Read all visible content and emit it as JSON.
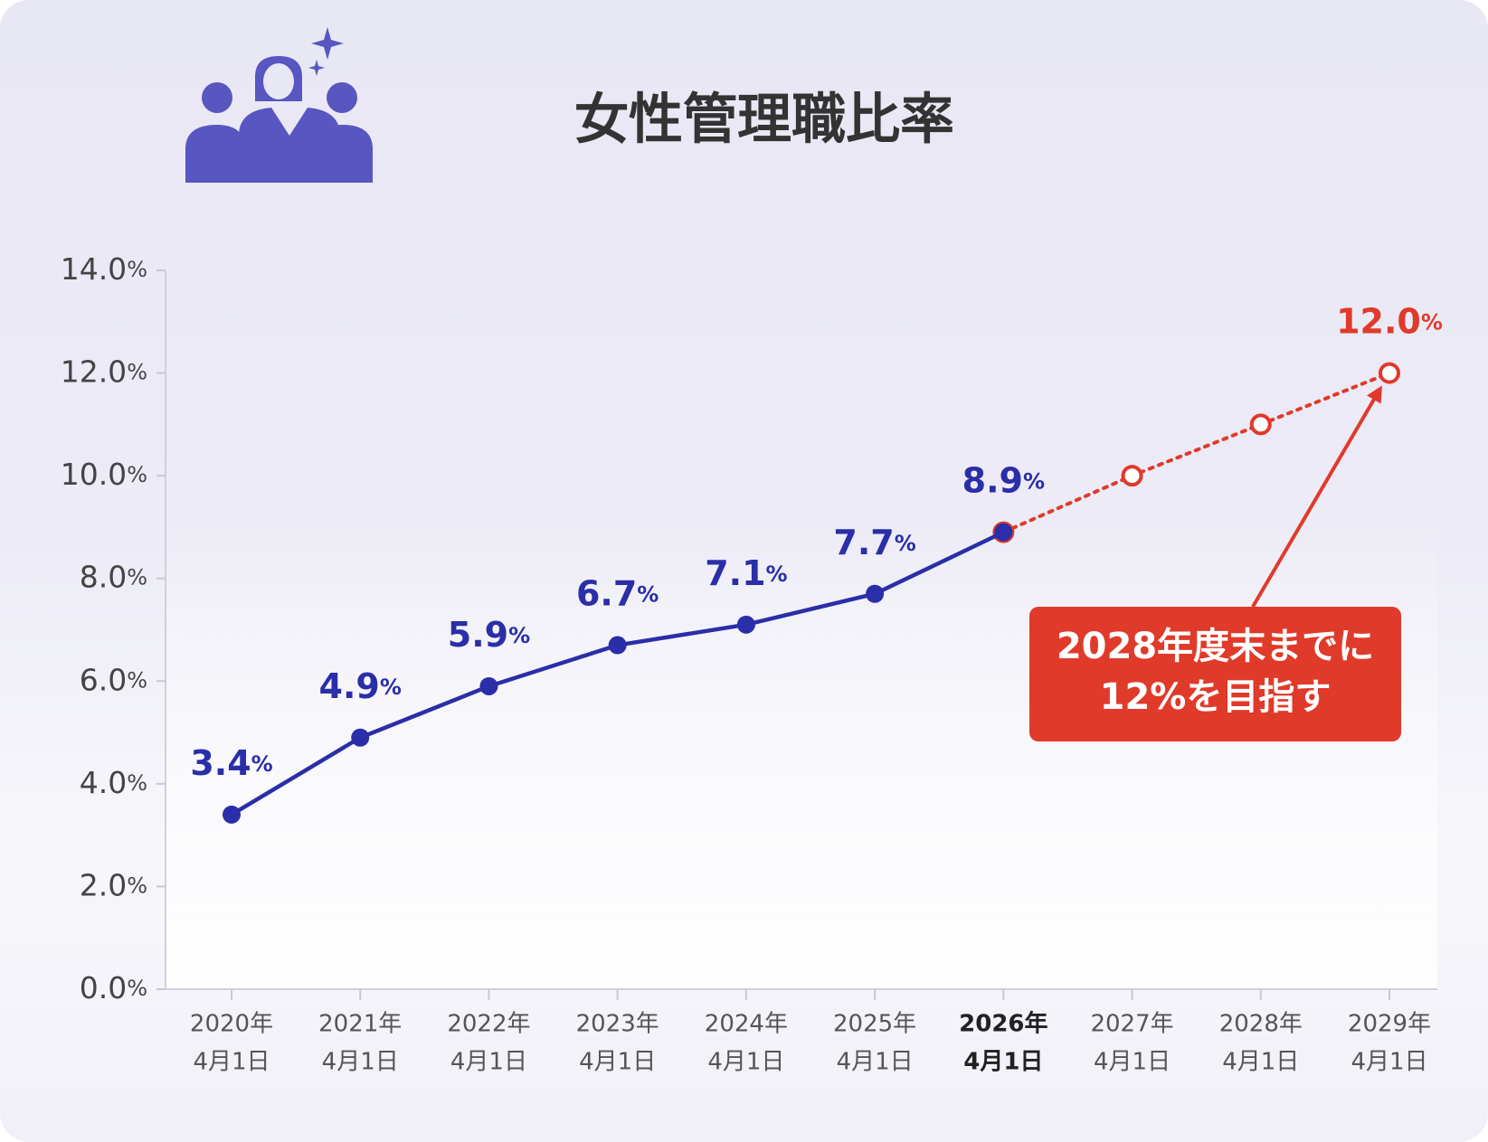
{
  "chart_data": {
    "type": "line",
    "title": "女性管理職比率",
    "categories": [
      [
        "2020年",
        "4月1日"
      ],
      [
        "2021年",
        "4月1日"
      ],
      [
        "2022年",
        "4月1日"
      ],
      [
        "2023年",
        "4月1日"
      ],
      [
        "2024年",
        "4月1日"
      ],
      [
        "2025年",
        "4月1日"
      ],
      [
        "2026年",
        "4月1日"
      ],
      [
        "2027年",
        "4月1日"
      ],
      [
        "2028年",
        "4月1日"
      ],
      [
        "2029年",
        "4月1日"
      ]
    ],
    "bold_category": 6,
    "series": [
      {
        "color": "#2a2ea8",
        "line": "solid",
        "marker": "filled",
        "values": [
          3.4,
          4.9,
          5.9,
          6.7,
          7.1,
          7.7,
          8.9,
          null,
          null,
          null
        ],
        "value_labels": [
          "3.4%",
          "4.9%",
          "5.9%",
          "6.7%",
          "7.1%",
          "7.7%",
          "8.9%",
          null,
          null,
          null
        ]
      },
      {
        "color": "#e03a2a",
        "line": "dotted",
        "marker": "open",
        "values": [
          null,
          null,
          null,
          null,
          null,
          null,
          8.9,
          10.0,
          11.0,
          12.0
        ],
        "value_labels": [
          null,
          null,
          null,
          null,
          null,
          null,
          null,
          null,
          null,
          "12.0%"
        ]
      }
    ],
    "ylim": [
      0,
      14
    ],
    "yticks": [
      {
        "value": 0,
        "label": "0.0%"
      },
      {
        "value": 2,
        "label": "2.0%"
      },
      {
        "value": 4,
        "label": "4.0%"
      },
      {
        "value": 6,
        "label": "6.0%"
      },
      {
        "value": 8,
        "label": "8.0%"
      },
      {
        "value": 10,
        "label": "10.0%"
      },
      {
        "value": 12,
        "label": "12.0%"
      },
      {
        "value": 14,
        "label": "14.0%"
      }
    ],
    "annotation": {
      "lines": [
        "2028年度末までに",
        "12%を目指す"
      ],
      "color": "#e03a2a",
      "target_index": 9
    }
  }
}
